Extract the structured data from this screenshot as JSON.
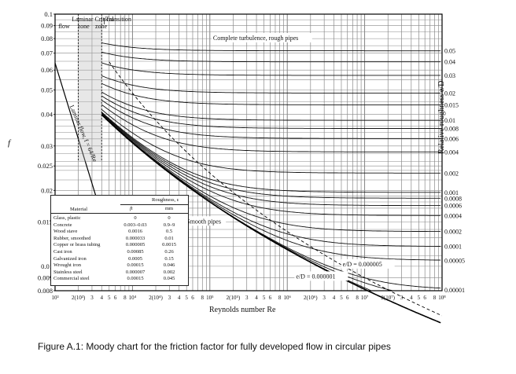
{
  "chart_data": {
    "type": "line",
    "title": "",
    "xlabel": "Reynolds number Re",
    "ylabel": "f",
    "right_axis_label": "Relative roughness e/D",
    "x_scale": "log",
    "y_scale": "log",
    "xlim": [
      1000,
      100000000
    ],
    "ylim": [
      0.008,
      0.1
    ],
    "grid": true,
    "y_ticks": [
      "0.1",
      "0.09",
      "0.08",
      "0.07",
      "0.06",
      "0.05",
      "0.04",
      "0.03",
      "0.025",
      "0.02",
      "0.015",
      "0.01",
      "0.009",
      "0.008"
    ],
    "y_tick_values": [
      0.1,
      0.09,
      0.08,
      0.07,
      0.06,
      0.05,
      0.04,
      0.03,
      0.025,
      0.02,
      0.015,
      0.01,
      0.009,
      0.008
    ],
    "x_ticks": [
      {
        "value": 1000,
        "label": "10³"
      },
      {
        "value": 2000,
        "label": "2(10³)"
      },
      {
        "value": 3000,
        "label": "3"
      },
      {
        "value": 4000,
        "label": "4"
      },
      {
        "value": 5000,
        "label": "5"
      },
      {
        "value": 6000,
        "label": "6"
      },
      {
        "value": 8000,
        "label": "8"
      },
      {
        "value": 10000,
        "label": "10⁴"
      },
      {
        "value": 20000,
        "label": "2(10⁴)"
      },
      {
        "value": 30000,
        "label": "3"
      },
      {
        "value": 40000,
        "label": "4"
      },
      {
        "value": 50000,
        "label": "5"
      },
      {
        "value": 60000,
        "label": "6"
      },
      {
        "value": 80000,
        "label": "8"
      },
      {
        "value": 100000,
        "label": "10⁵"
      },
      {
        "value": 200000,
        "label": "2(10⁵)"
      },
      {
        "value": 300000,
        "label": "3"
      },
      {
        "value": 400000,
        "label": "4"
      },
      {
        "value": 500000,
        "label": "5"
      },
      {
        "value": 600000,
        "label": "6"
      },
      {
        "value": 800000,
        "label": "8"
      },
      {
        "value": 1000000,
        "label": "10⁶"
      },
      {
        "value": 2000000,
        "label": "2(10⁶)"
      },
      {
        "value": 3000000,
        "label": "3"
      },
      {
        "value": 4000000,
        "label": "4"
      },
      {
        "value": 5000000,
        "label": "5"
      },
      {
        "value": 6000000,
        "label": "6"
      },
      {
        "value": 8000000,
        "label": "8"
      },
      {
        "value": 10000000,
        "label": "10⁷"
      },
      {
        "value": 20000000,
        "label": "2(10⁷)"
      },
      {
        "value": 30000000,
        "label": "3"
      },
      {
        "value": 40000000,
        "label": "4"
      },
      {
        "value": 50000000,
        "label": "5"
      },
      {
        "value": 60000000,
        "label": "6"
      },
      {
        "value": 80000000,
        "label": "8"
      },
      {
        "value": 100000000,
        "label": "10⁸"
      }
    ],
    "roughness_curves": [
      {
        "label": "0.05",
        "value": 0.05
      },
      {
        "label": "0.04",
        "value": 0.04
      },
      {
        "label": "0.03",
        "value": 0.03
      },
      {
        "label": "0.02",
        "value": 0.02
      },
      {
        "label": "0.015",
        "value": 0.015
      },
      {
        "label": "0.01",
        "value": 0.01
      },
      {
        "label": "0.008",
        "value": 0.008
      },
      {
        "label": "0.006",
        "value": 0.006
      },
      {
        "label": "0.004",
        "value": 0.004
      },
      {
        "label": "0.002",
        "value": 0.002
      },
      {
        "label": "0.001",
        "value": 0.001
      },
      {
        "label": "0.0008",
        "value": 0.0008
      },
      {
        "label": "0.0006",
        "value": 0.0006
      },
      {
        "label": "0.0004",
        "value": 0.0004
      },
      {
        "label": "0.0002",
        "value": 0.0002
      },
      {
        "label": "0.0001",
        "value": 0.0001
      },
      {
        "label": "0.00005",
        "value": 5e-05
      },
      {
        "label": "0.00001",
        "value": 1e-05
      },
      {
        "label": "0.000005",
        "value": 5e-06
      },
      {
        "label": "0.000001",
        "value": 1e-06
      }
    ],
    "laminar": {
      "Re": [
        1000,
        2000,
        4000,
        6400
      ],
      "f": [
        0.064,
        0.032,
        0.016,
        0.01
      ]
    },
    "annotations": {
      "laminar_label": "Laminar flow, f = 64/Re",
      "laminar_critical": "Laminar Critical",
      "transition": "Transition",
      "flow": "flow",
      "zone_a": "zone",
      "zone_b": "zone",
      "complete_turbulence": "Complete turbulence, rough pipes",
      "smooth_pipes": "Smooth pipes",
      "ed_000005": "e/D = 0.000005",
      "ed_000001": "e/D = 0.000001"
    },
    "roughness_table": {
      "header_roughness": "Roughness, ε",
      "header_material": "Material",
      "header_ft": "ft",
      "header_mm": "mm",
      "rows": [
        {
          "material": "Glass, plastic",
          "ft": "0",
          "mm": "0"
        },
        {
          "material": "Concrete",
          "ft": "0.003–0.03",
          "mm": "0.9–9"
        },
        {
          "material": "Wood stave",
          "ft": "0.0016",
          "mm": "0.5"
        },
        {
          "material": "Rubber, smoothed",
          "ft": "0.000033",
          "mm": "0.01"
        },
        {
          "material": "Copper or brass tubing",
          "ft": "0.000005",
          "mm": "0.0015"
        },
        {
          "material": "Cast iron",
          "ft": "0.00085",
          "mm": "0.26"
        },
        {
          "material": "Galvanized iron",
          "ft": "0.0005",
          "mm": "0.15"
        },
        {
          "material": "Wrought iron",
          "ft": "0.00015",
          "mm": "0.046"
        },
        {
          "material": "Stainless steel",
          "ft": "0.000007",
          "mm": "0.002"
        },
        {
          "material": "Commercial steel",
          "ft": "0.00015",
          "mm": "0.045"
        }
      ]
    }
  },
  "caption": "Figure A.1: Moody chart for the friction factor for fully developed flow in circular pipes"
}
